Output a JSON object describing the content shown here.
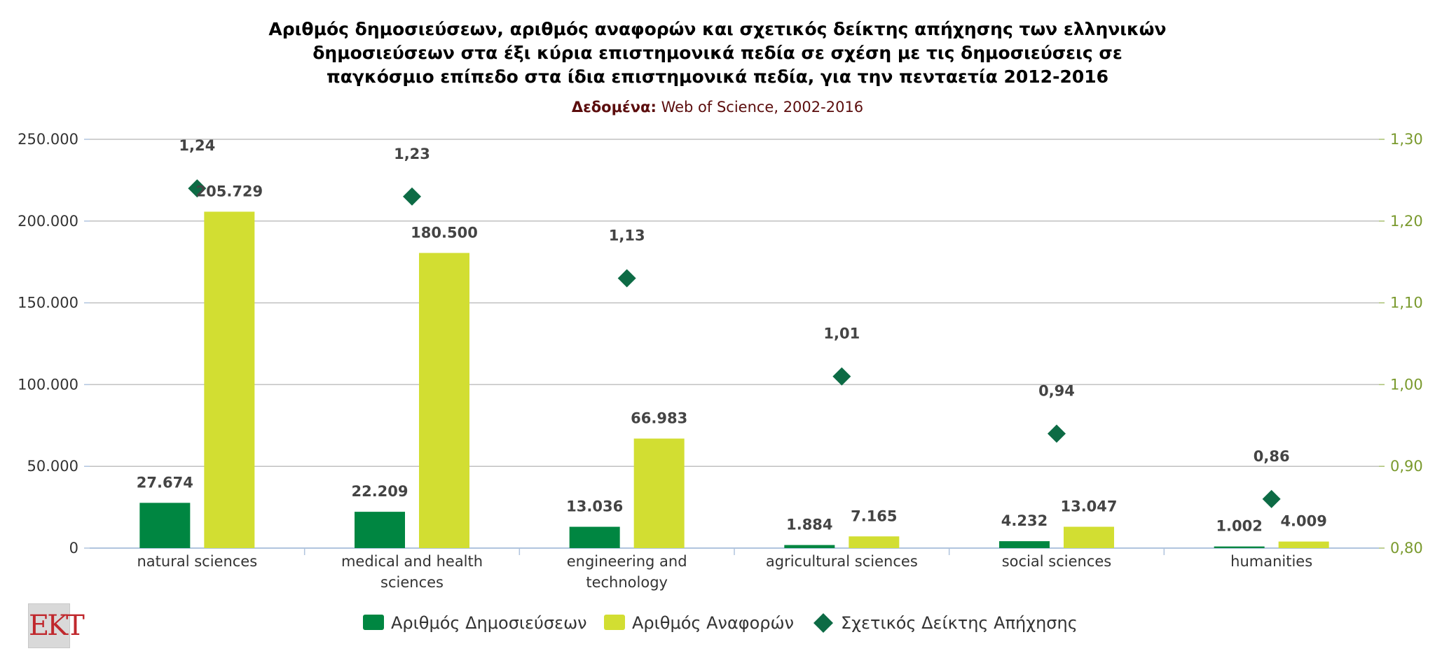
{
  "title_lines": [
    "Αριθμός δημοσιεύσεων, αριθμός αναφορών και σχετικός δείκτης απήχησης των ελληνικών",
    "δημοσιεύσεων στα έξι κύρια επιστημονικά πεδία σε σχέση με τις δημοσιεύσεις σε",
    "παγκόσμιο επίπεδο στα ίδια επιστημονικά πεδία, για την πενταετία 2012-2016"
  ],
  "subtitle": {
    "key": "Δεδομένα:",
    "value": " Web of Science, 2002-2016"
  },
  "logo_text": "EKT",
  "colors": {
    "publications": "#008641",
    "citations": "#d2de32",
    "index": "#0d6b45",
    "grid": "#c0c0c0",
    "left_axis_text": "#333333",
    "right_axis_text": "#7a9a2e"
  },
  "chart_data": {
    "type": "bar",
    "categories": [
      [
        "natural sciences"
      ],
      [
        "medical and health",
        "sciences"
      ],
      [
        "engineering and",
        "technology"
      ],
      [
        "agricultural sciences"
      ],
      [
        "social sciences"
      ],
      [
        "humanities"
      ]
    ],
    "series": [
      {
        "name": "Αριθμός Δημοσιεύσεων",
        "type": "bar",
        "axis": "left",
        "values": [
          27674,
          22209,
          13036,
          1884,
          4232,
          1002
        ],
        "labels": [
          "27.674",
          "22.209",
          "13.036",
          "1.884",
          "4.232",
          "1.002"
        ]
      },
      {
        "name": "Αριθμός Αναφορών",
        "type": "bar",
        "axis": "left",
        "values": [
          205729,
          180500,
          66983,
          7165,
          13047,
          4009
        ],
        "labels": [
          "205.729",
          "180.500",
          "66.983",
          "7.165",
          "13.047",
          "4.009"
        ]
      },
      {
        "name": "Σχετικός Δείκτης Απήχησης",
        "type": "scatter",
        "marker": "diamond",
        "axis": "right",
        "values": [
          1.24,
          1.23,
          1.13,
          1.01,
          0.94,
          0.86
        ],
        "labels": [
          "1,24",
          "1,23",
          "1,13",
          "1,01",
          "0,94",
          "0,86"
        ]
      }
    ],
    "y_left": {
      "range": [
        0,
        250000
      ],
      "ticks": [
        "0",
        "50.000",
        "100.000",
        "150.000",
        "200.000",
        "250.000"
      ],
      "tick_values": [
        0,
        50000,
        100000,
        150000,
        200000,
        250000
      ]
    },
    "y_right": {
      "range": [
        0.8,
        1.3
      ],
      "ticks": [
        "0,80",
        "0,90",
        "1,00",
        "1,10",
        "1,20",
        "1,30"
      ],
      "tick_values": [
        0.8,
        0.9,
        1.0,
        1.1,
        1.2,
        1.3
      ]
    },
    "grid": true,
    "legend_position": "bottom"
  }
}
